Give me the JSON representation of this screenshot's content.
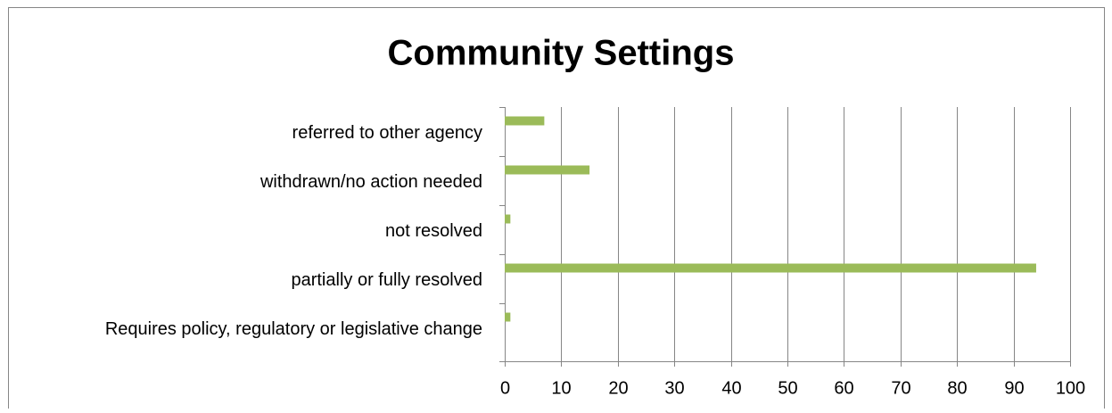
{
  "chart_data": {
    "type": "bar",
    "orientation": "horizontal",
    "title": "Community Settings",
    "categories": [
      "referred to other agency",
      "withdrawn/no action needed",
      "not resolved",
      "partially or fully resolved",
      "Requires policy, regulatory or legislative change"
    ],
    "values": [
      7,
      15,
      1,
      94,
      1
    ],
    "color": "#9bbb59",
    "xlim": [
      0,
      100
    ],
    "xticks": [
      0,
      10,
      20,
      30,
      40,
      50,
      60,
      70,
      80,
      90,
      100
    ],
    "grid": true
  }
}
